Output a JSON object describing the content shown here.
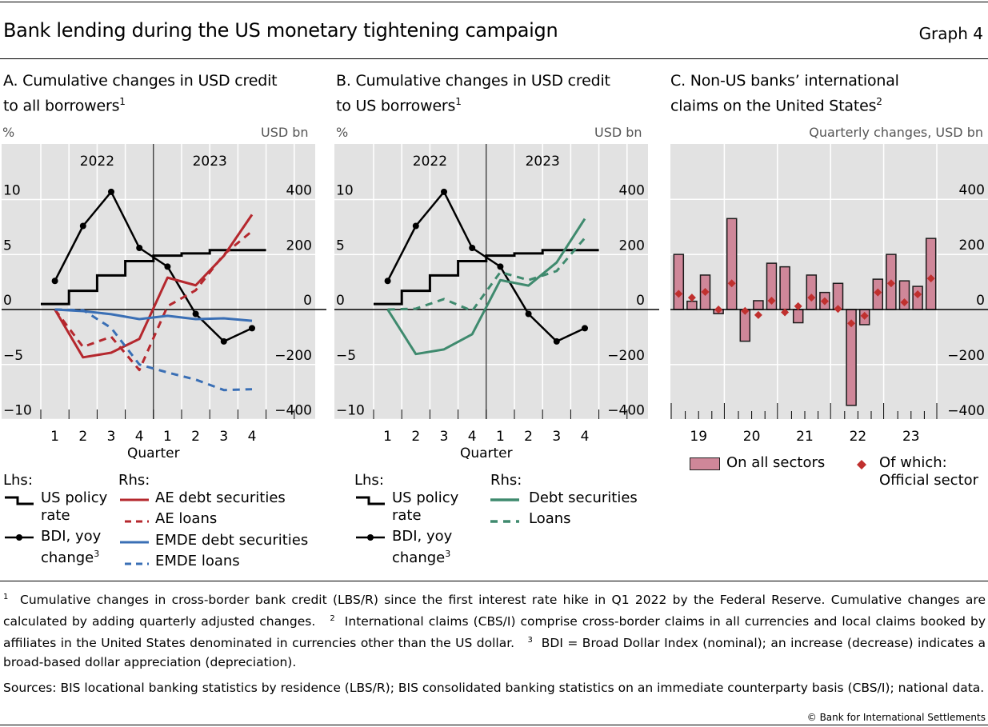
{
  "header": {
    "title": "Bank lending during the US monetary tightening campaign",
    "graph_number": "Graph 4"
  },
  "panels": {
    "a": {
      "title_line1": "A. Cumulative changes in USD credit",
      "title_line2": "to all borrowers",
      "title_sup": "1",
      "lhs_unit": "%",
      "rhs_unit": "USD bn",
      "legend": {
        "lhs_label": "Lhs:",
        "rhs_label": "Rhs:",
        "policy_rate_1": "US policy",
        "policy_rate_2": "rate",
        "bdi_1": "BDI, yoy",
        "bdi_2": "change",
        "bdi_sup": "3",
        "ae_debt": "AE debt securities",
        "ae_loans": "AE loans",
        "emde_debt": "EMDE debt securities",
        "emde_loans": "EMDE loans"
      }
    },
    "b": {
      "title_line1": "B. Cumulative changes in USD credit",
      "title_line2": "to US borrowers",
      "title_sup": "1",
      "lhs_unit": "%",
      "rhs_unit": "USD bn",
      "legend": {
        "lhs_label": "Lhs:",
        "rhs_label": "Rhs:",
        "policy_rate_1": "US policy",
        "policy_rate_2": "rate",
        "bdi_1": "BDI, yoy",
        "bdi_2": "change",
        "bdi_sup": "3",
        "debt": "Debt securities",
        "loans": "Loans"
      }
    },
    "c": {
      "title_line1": "C. Non-US banks’ international",
      "title_line2": "claims on the United States",
      "title_sup": "2",
      "unit": "Quarterly changes, USD bn",
      "legend": {
        "bars": "On all sectors",
        "diamonds_1": "Of which:",
        "diamonds_2": "Official sector"
      }
    }
  },
  "chart_data": [
    {
      "type": "line",
      "panel": "A",
      "title": "A. Cumulative changes in USD credit to all borrowers",
      "xlabel": "Quarter",
      "year_labels": [
        "2022",
        "2023"
      ],
      "categories": [
        "1",
        "2",
        "3",
        "4",
        "1",
        "2",
        "3",
        "4"
      ],
      "ylabel_left": "%",
      "ylabel_right": "USD bn",
      "ylim_left": [
        -10,
        10
      ],
      "ylim_right": [
        -400,
        400
      ],
      "yticks_left": [
        10,
        5,
        0,
        -5,
        -10
      ],
      "yticks_right": [
        400,
        200,
        0,
        -200,
        -400
      ],
      "grid": true,
      "colors": {
        "policy": "#000000",
        "bdi": "#000000",
        "ae": "#b5282e",
        "emde": "#3a6fb5"
      },
      "policy_rate_steps": [
        0.5,
        1.7,
        3.1,
        4.4,
        4.9,
        5.1,
        5.4,
        5.4
      ],
      "series": [
        {
          "name": "BDI, yoy change",
          "axis": "left",
          "style": "line-dot",
          "values": [
            2.6,
            7.6,
            10.7,
            5.6,
            3.9,
            -0.4,
            -2.9,
            -1.7
          ]
        },
        {
          "name": "AE debt securities",
          "axis": "right",
          "style": "solid",
          "values": [
            0,
            -174,
            -157,
            -107,
            116,
            88,
            195,
            345
          ]
        },
        {
          "name": "AE loans",
          "axis": "right",
          "style": "dashed",
          "values": [
            0,
            -136,
            -99,
            -220,
            12,
            70,
            200,
            285
          ]
        },
        {
          "name": "EMDE debt securities",
          "axis": "right",
          "style": "solid",
          "values": [
            0,
            -6,
            -17,
            -35,
            -23,
            -35,
            -32,
            -41
          ]
        },
        {
          "name": "EMDE loans",
          "axis": "right",
          "style": "dashed",
          "values": [
            0,
            -2,
            -67,
            -200,
            -229,
            -255,
            -293,
            -290
          ]
        }
      ]
    },
    {
      "type": "line",
      "panel": "B",
      "title": "B. Cumulative changes in USD credit to US borrowers",
      "xlabel": "Quarter",
      "year_labels": [
        "2022",
        "2023"
      ],
      "categories": [
        "1",
        "2",
        "3",
        "4",
        "1",
        "2",
        "3",
        "4"
      ],
      "ylabel_left": "%",
      "ylabel_right": "USD bn",
      "ylim_left": [
        -10,
        10
      ],
      "ylim_right": [
        -400,
        400
      ],
      "yticks_left": [
        10,
        5,
        0,
        -5,
        -10
      ],
      "yticks_right": [
        400,
        200,
        0,
        -200,
        -400
      ],
      "grid": true,
      "colors": {
        "policy": "#000000",
        "bdi": "#000000",
        "us": "#3f8a6e"
      },
      "policy_rate_steps": [
        0.5,
        1.7,
        3.1,
        4.4,
        4.9,
        5.1,
        5.4,
        5.4
      ],
      "series": [
        {
          "name": "BDI, yoy change",
          "axis": "left",
          "style": "line-dot",
          "values": [
            2.6,
            7.6,
            10.7,
            5.6,
            3.9,
            -0.4,
            -2.9,
            -1.7
          ]
        },
        {
          "name": "Debt securities",
          "axis": "right",
          "style": "solid",
          "values": [
            0,
            -162,
            -145,
            -90,
            107,
            87,
            171,
            330
          ]
        },
        {
          "name": "Loans",
          "axis": "right",
          "style": "dashed",
          "values": [
            0,
            3,
            38,
            -5,
            136,
            107,
            140,
            260
          ]
        }
      ]
    },
    {
      "type": "bar",
      "panel": "C",
      "title": "C. Non-US banks’ international claims on the United States",
      "ylabel": "Quarterly changes, USD bn",
      "year_labels": [
        "19",
        "20",
        "21",
        "22",
        "23"
      ],
      "categories": [
        "2019Q1",
        "2019Q2",
        "2019Q3",
        "2019Q4",
        "2020Q1",
        "2020Q2",
        "2020Q3",
        "2020Q4",
        "2021Q1",
        "2021Q2",
        "2021Q3",
        "2021Q4",
        "2022Q1",
        "2022Q2",
        "2022Q3",
        "2022Q4",
        "2023Q1",
        "2023Q2",
        "2023Q3",
        "2023Q4"
      ],
      "ylim": [
        -400,
        400
      ],
      "yticks": [
        400,
        200,
        0,
        -200,
        -400
      ],
      "grid": true,
      "colors": {
        "bar_fill": "#cf8799",
        "bar_edge": "#1a1a1a",
        "diamond": "#c0302e"
      },
      "series": [
        {
          "name": "On all sectors",
          "style": "bar",
          "values": [
            200,
            30,
            125,
            -15,
            330,
            -115,
            32,
            168,
            155,
            -48,
            125,
            62,
            95,
            -348,
            -55,
            110,
            200,
            104,
            84,
            258
          ]
        },
        {
          "name": "Of which: Official sector",
          "style": "diamond",
          "values": [
            57,
            43,
            64,
            0,
            95,
            -5,
            -20,
            32,
            -10,
            12,
            43,
            30,
            2,
            -50,
            -23,
            62,
            95,
            26,
            55,
            113
          ]
        }
      ]
    }
  ],
  "footnotes": {
    "fn1_mark": "1",
    "fn1": "Cumulative changes in cross-border bank credit (LBS/R) since the first interest rate hike in Q1 2022 by the Federal Reserve. Cumulative changes are calculated by adding quarterly adjusted changes.",
    "fn2_mark": "2",
    "fn2": "International claims (CBS/I) comprise cross-border claims in all currencies and local claims booked by affiliates in the United States denominated in currencies other than the US dollar.",
    "fn3_mark": "3",
    "fn3": "BDI = Broad Dollar Index (nominal); an increase (decrease) indicates a broad-based dollar appreciation (depreciation).",
    "sources": "Sources: BIS locational banking statistics by residence (LBS/R); BIS consolidated banking statistics on an immediate counterparty basis (CBS/I); national data.",
    "copyright": "© Bank for International Settlements"
  }
}
